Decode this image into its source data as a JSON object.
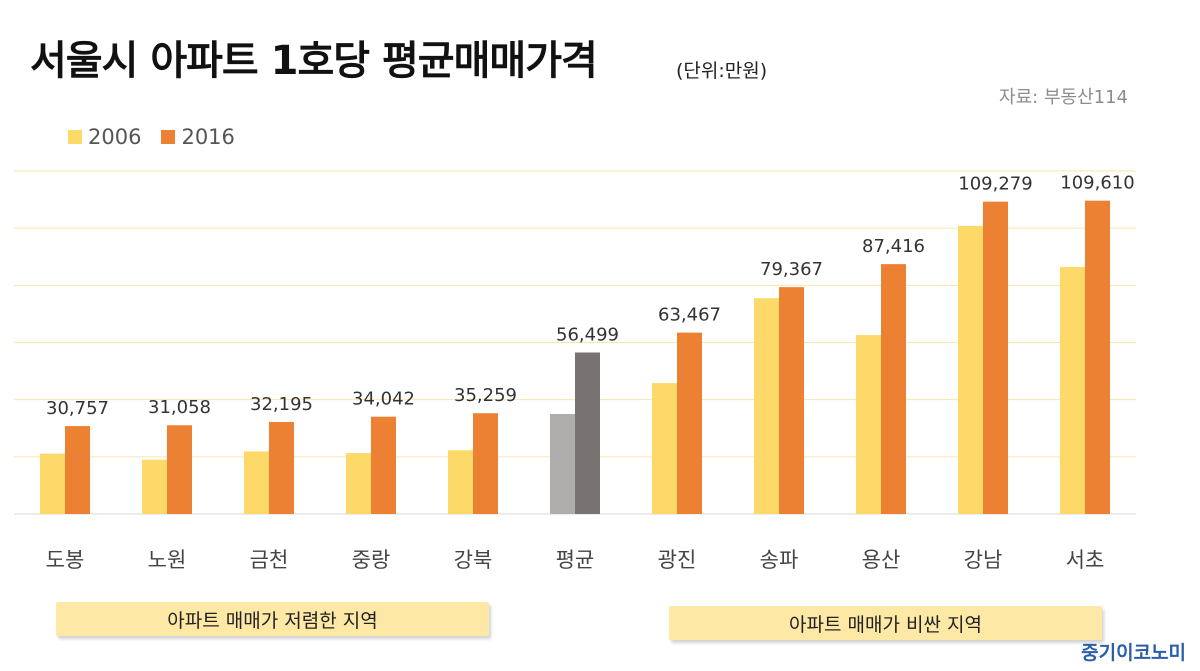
{
  "title": "서울시 아파트 1호당 평균매매가격",
  "unit": "(단위:만원)",
  "source": "자료: 부동산114",
  "legend": [
    "2006",
    "2016"
  ],
  "colors": {
    "y2006": "#fdd96a",
    "y2016": "#ec8133",
    "avg2006": "#b0aeac",
    "avg2016": "#787372",
    "gridline": "#fae6ad",
    "band": "#fde8a6",
    "brand": "#2b5ea8"
  },
  "chart_data": {
    "type": "bar",
    "categories": [
      "도봉",
      "노원",
      "금천",
      "중랑",
      "강북",
      "평균",
      "광진",
      "송파",
      "용산",
      "강남",
      "서초"
    ],
    "series": [
      {
        "name": "2006",
        "values": [
          21100,
          19000,
          21900,
          21300,
          22300,
          35000,
          45800,
          75500,
          62600,
          100800,
          86400
        ]
      },
      {
        "name": "2016",
        "values": [
          30757,
          31058,
          32195,
          34042,
          35259,
          56499,
          63467,
          79367,
          87416,
          109279,
          109610
        ]
      }
    ],
    "data_labels": [
      "30,757",
      "31,058",
      "32,195",
      "34,042",
      "35,259",
      "56,499",
      "63,467",
      "79,367",
      "87,416",
      "109,279",
      "109,610"
    ],
    "highlight_category": "평균",
    "ylim": [
      0,
      120000
    ],
    "grid": true,
    "gridline_step": 20000,
    "legend_position": "top-left"
  },
  "annotations": {
    "cheap": "아파트 매매가 저렴한 지역",
    "expensive": "아파트 매매가 비싼 지역"
  },
  "brand": "중기이코노미"
}
